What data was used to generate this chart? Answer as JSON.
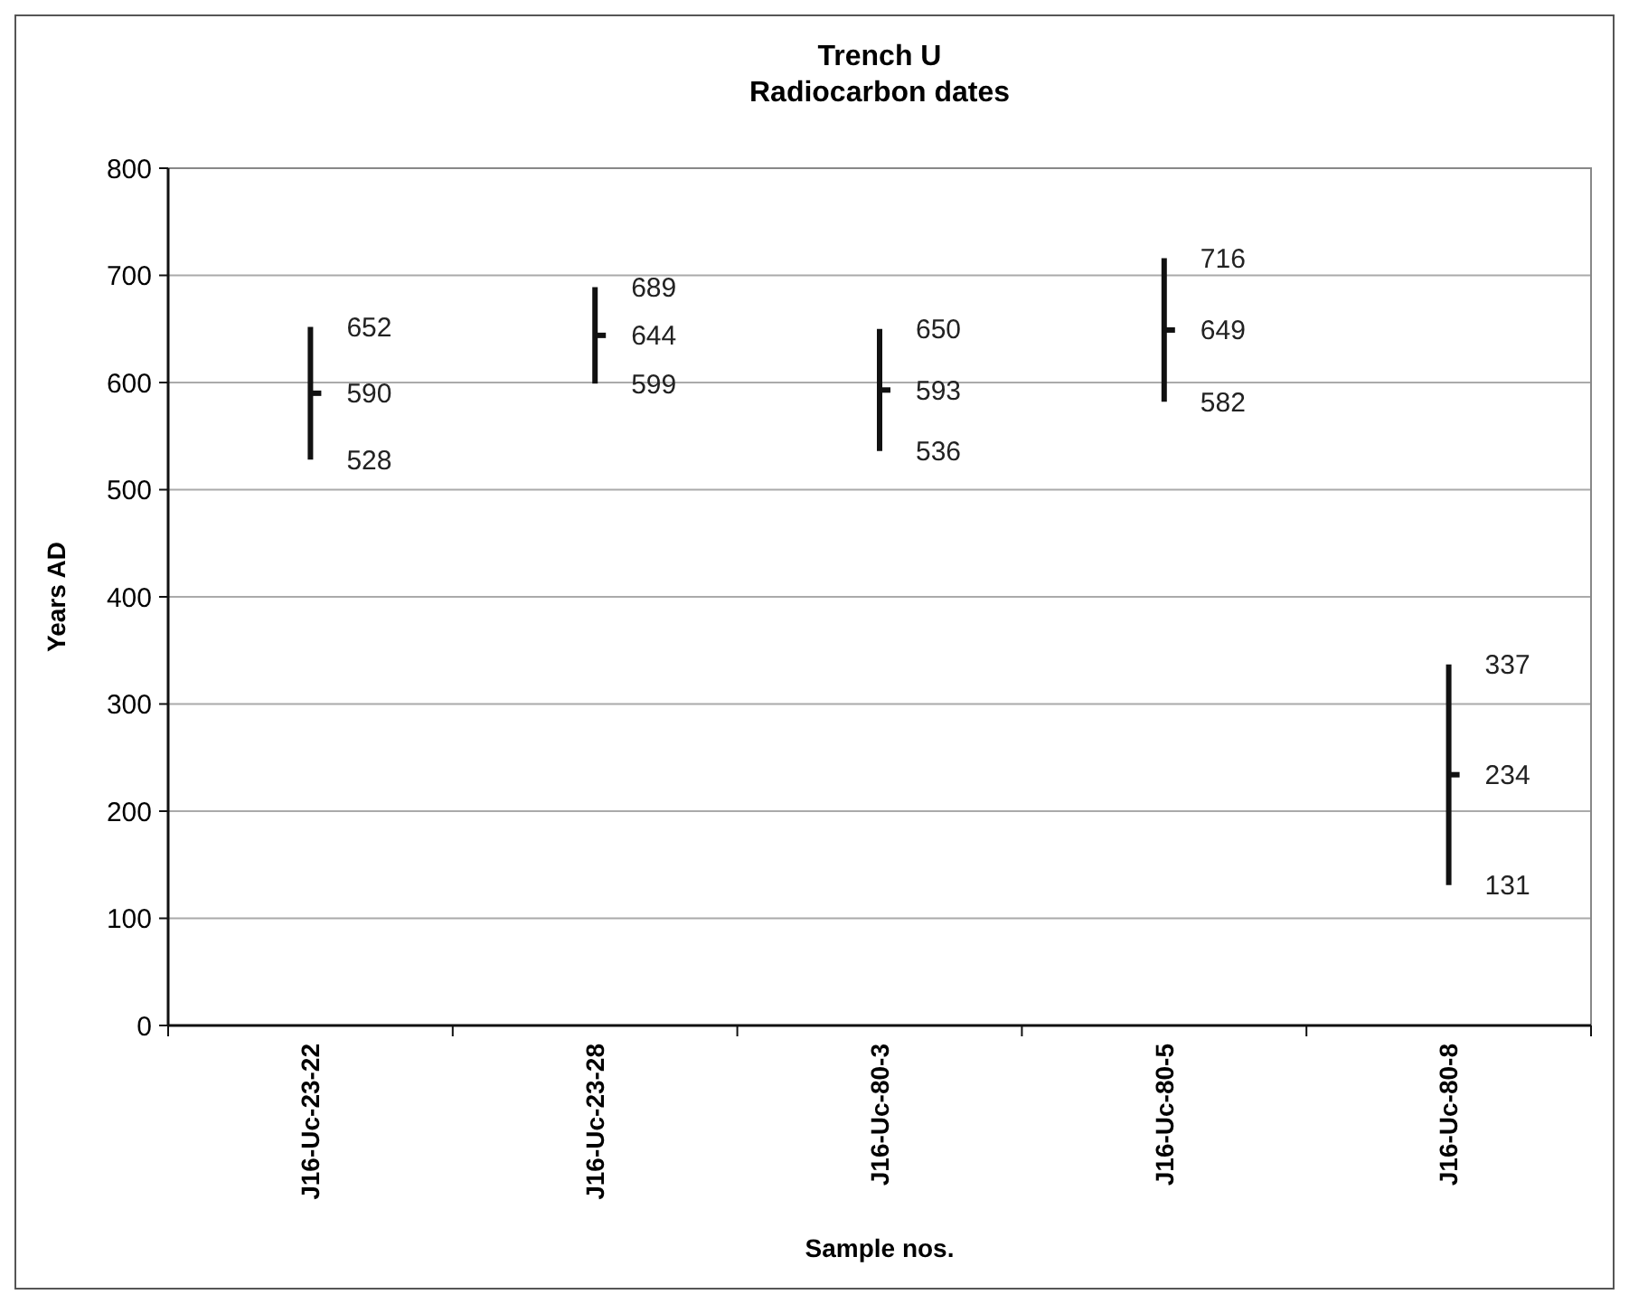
{
  "chart_data": {
    "type": "scatter",
    "title": "Trench U\nRadiocarbon dates",
    "xlabel": "Sample nos.",
    "ylabel": "Years AD",
    "categories": [
      "J16-Uc-23-22",
      "J16-Uc-23-28",
      "J16-Uc-80-3",
      "J16-Uc-80-5",
      "J16-Uc-80-8"
    ],
    "series": [
      {
        "color": "#111111",
        "values": [
          590,
          644,
          593,
          649,
          234
        ],
        "errors": [
          [
            528,
            652
          ],
          [
            599,
            689
          ],
          [
            536,
            650
          ],
          [
            582,
            716
          ],
          [
            131,
            337
          ]
        ]
      }
    ],
    "data_labels": true,
    "annotations": [
      {
        "text": "652",
        "x": "J16-Uc-23-22",
        "y": 652
      },
      {
        "text": "528",
        "x": "J16-Uc-23-22",
        "y": 528
      },
      {
        "text": "689",
        "x": "J16-Uc-23-28",
        "y": 689
      },
      {
        "text": "599",
        "x": "J16-Uc-23-28",
        "y": 599
      },
      {
        "text": "650",
        "x": "J16-Uc-80-3",
        "y": 650
      },
      {
        "text": "536",
        "x": "J16-Uc-80-3",
        "y": 536
      },
      {
        "text": "716",
        "x": "J16-Uc-80-5",
        "y": 716
      },
      {
        "text": "582",
        "x": "J16-Uc-80-5",
        "y": 582
      },
      {
        "text": "337",
        "x": "J16-Uc-80-8",
        "y": 337
      },
      {
        "text": "131",
        "x": "J16-Uc-80-8",
        "y": 131
      }
    ],
    "ylim": [
      0,
      800
    ],
    "yticks": [
      0,
      100,
      200,
      300,
      400,
      500,
      600,
      700,
      800
    ],
    "grid": "y"
  }
}
